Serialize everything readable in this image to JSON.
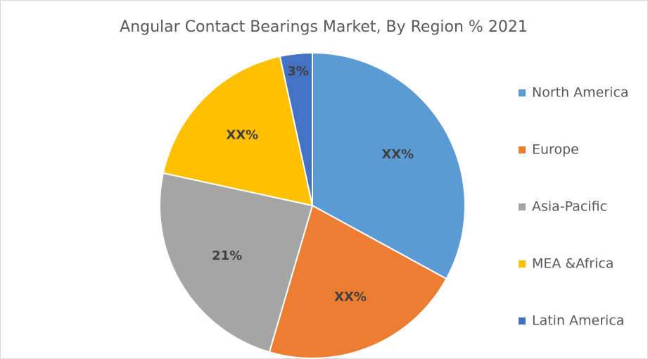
{
  "chart_data": {
    "type": "pie",
    "title": "Angular Contact Bearings Market, By Region % 2021",
    "categories": [
      "North America",
      "Europe",
      "Asia-Pacific",
      "MEA &Africa",
      "Latin America"
    ],
    "values": [
      29,
      19,
      21,
      16,
      3
    ],
    "value_labels": [
      "XX%",
      "XX%",
      "21%",
      "XX%",
      "3%"
    ],
    "colors": [
      "#5b9bd5",
      "#ed7d31",
      "#a5a5a5",
      "#ffc000",
      "#4472c4"
    ],
    "legend": "right"
  }
}
